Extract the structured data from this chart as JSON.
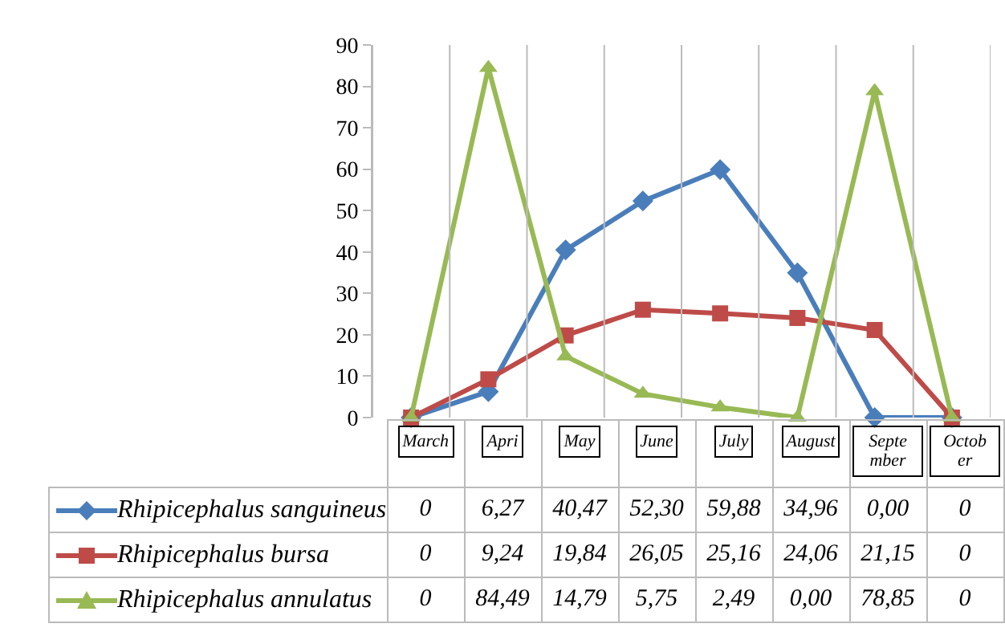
{
  "chart_data": {
    "type": "line",
    "categories": [
      "March",
      "Apri",
      "May",
      "June",
      "July",
      "August",
      "Septe mber",
      "Octob er"
    ],
    "ylim": [
      0,
      90
    ],
    "yticks": [
      0,
      10,
      20,
      30,
      40,
      50,
      60,
      70,
      80,
      90
    ],
    "grid": "x",
    "legend": "bottom",
    "line_style": "solid",
    "series": [
      {
        "name": "Rhipicephalus sanguineus",
        "color": "#4a7ebb",
        "marker": "diamond",
        "values": [
          0,
          6.27,
          40.47,
          52.3,
          59.88,
          34.96,
          0.0,
          0
        ],
        "value_labels": [
          "0",
          "6,27",
          "40,47",
          "52,30",
          "59,88",
          "34,96",
          "0,00",
          "0"
        ]
      },
      {
        "name": "Rhipicephalus bursa",
        "color": "#be4b48",
        "marker": "square",
        "values": [
          0,
          9.24,
          19.84,
          26.05,
          25.16,
          24.06,
          21.15,
          0
        ],
        "value_labels": [
          "0",
          "9,24",
          "19,84",
          "26,05",
          "25,16",
          "24,06",
          "21,15",
          "0"
        ]
      },
      {
        "name": "Rhipicephalus annulatus",
        "color": "#98b954",
        "marker": "triangle",
        "values": [
          0,
          84.49,
          14.79,
          5.75,
          2.49,
          0.0,
          78.85,
          0
        ],
        "value_labels": [
          "0",
          "84,49",
          "14,79",
          "5,75",
          "2,49",
          "0,00",
          "78,85",
          "0"
        ]
      }
    ]
  }
}
